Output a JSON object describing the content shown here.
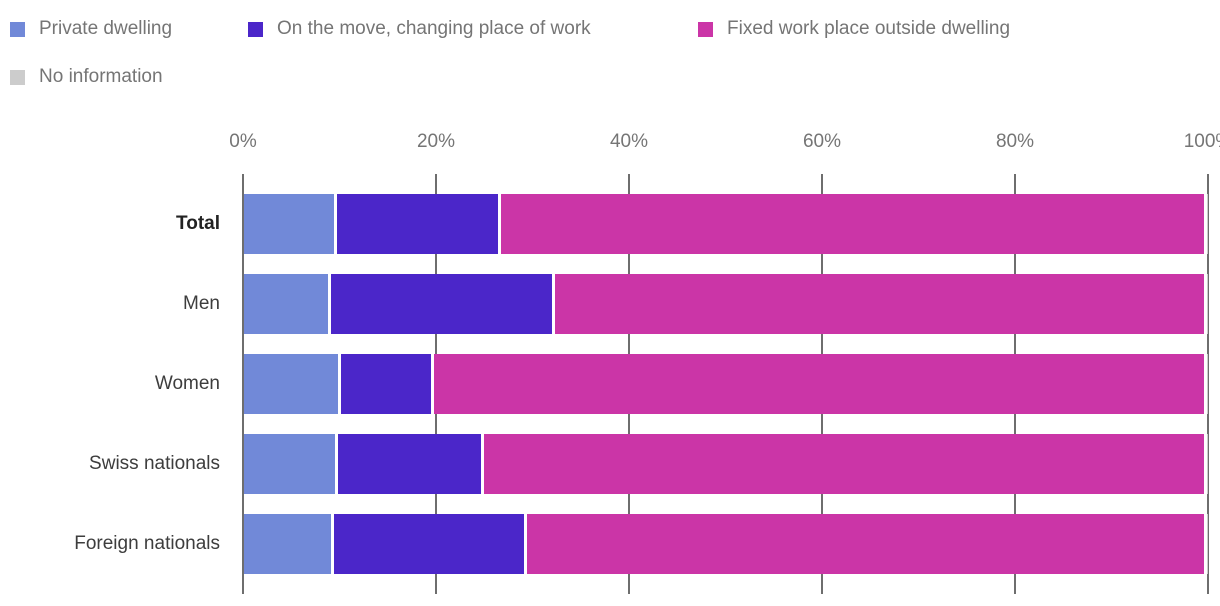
{
  "chart_data": {
    "type": "bar",
    "orientation": "horizontal",
    "stacked": true,
    "title": "",
    "xlabel": "",
    "ylabel": "",
    "xlim": [
      0,
      100
    ],
    "x_ticks": [
      "0%",
      "20%",
      "40%",
      "60%",
      "80%",
      "100%"
    ],
    "x_tick_values": [
      0,
      20,
      40,
      60,
      80,
      100
    ],
    "grid": true,
    "legend_position": "top",
    "categories": [
      "Total",
      "Men",
      "Women",
      "Swiss nationals",
      "Foreign nationals"
    ],
    "bold_categories": [
      "Total"
    ],
    "series": [
      {
        "name": "Private dwelling",
        "color": "#7189d8",
        "values": [
          9.3,
          8.7,
          9.8,
          9.4,
          9.0
        ]
      },
      {
        "name": "On the move, changing place of work",
        "color": "#4b26c9",
        "values": [
          17.0,
          23.2,
          9.6,
          15.2,
          20.0
        ]
      },
      {
        "name": "Fixed work place outside dwelling",
        "color": "#cb35a7",
        "values": [
          73.3,
          67.7,
          80.2,
          75.0,
          70.6
        ]
      },
      {
        "name": "No information",
        "color": "#cccccc",
        "values": [
          0.4,
          0.4,
          0.4,
          0.4,
          0.4
        ]
      }
    ]
  },
  "colors": {
    "background": "#ffffff",
    "gridline": "#6e6e6e",
    "axis_text": "#757575",
    "legend_text": "#757575",
    "category_text": "#3d3d3d"
  }
}
